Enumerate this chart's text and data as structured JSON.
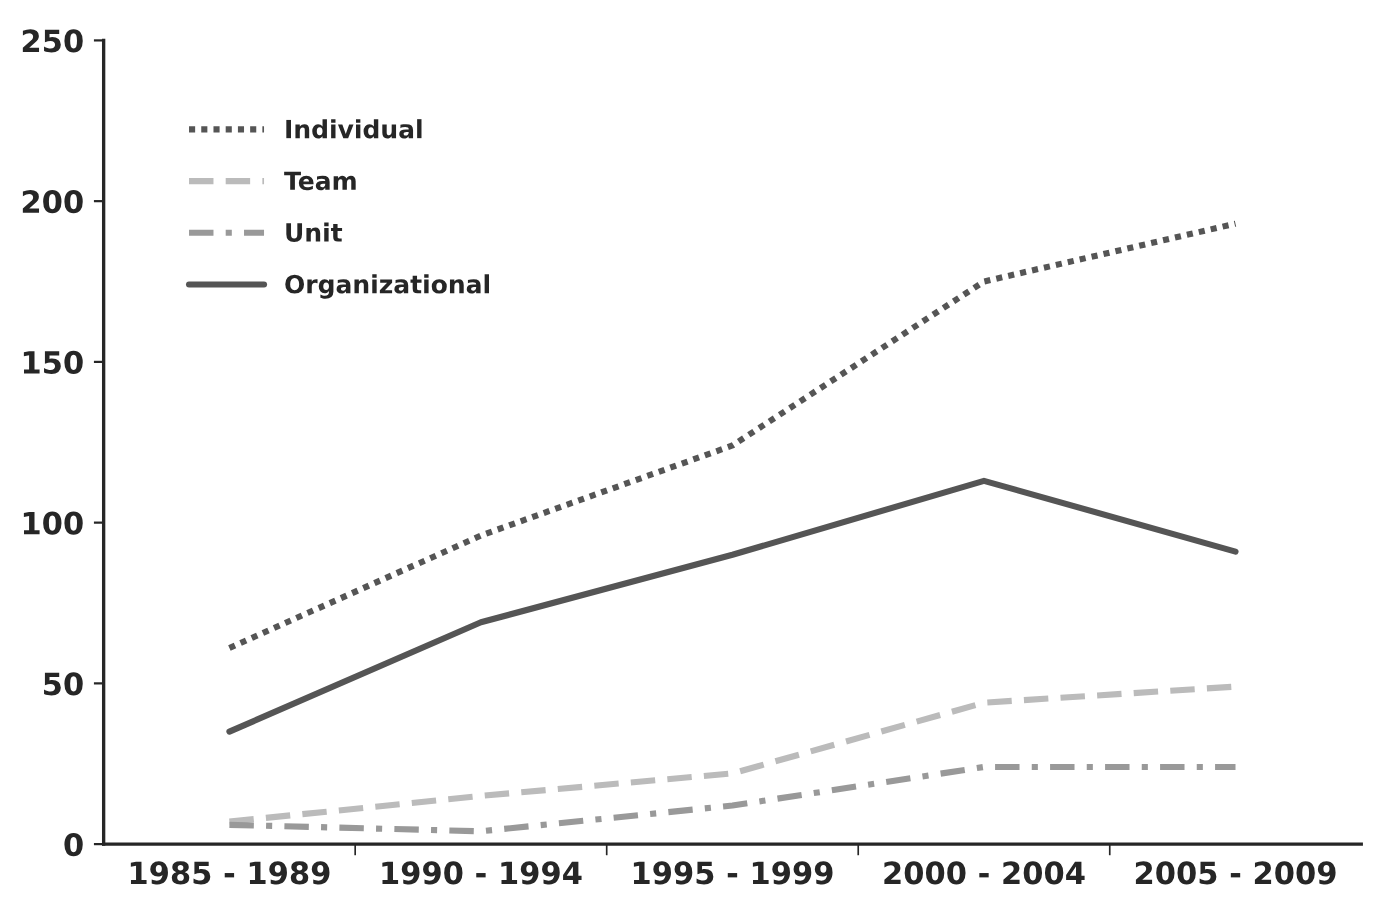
{
  "chart_data": {
    "type": "line",
    "categories": [
      "1985 - 1989",
      "1990 - 1994",
      "1995 - 1999",
      "2000 - 2004",
      "2005 - 2009"
    ],
    "series": [
      {
        "name": "Individual",
        "color": "#555555",
        "line_style": "dotted",
        "values": [
          61,
          96,
          124,
          175,
          193
        ]
      },
      {
        "name": "Team",
        "color": "#bbbbbb",
        "line_style": "dashed",
        "values": [
          7,
          15,
          22,
          44,
          49
        ]
      },
      {
        "name": "Unit",
        "color": "#999999",
        "line_style": "dashdot",
        "values": [
          6,
          4,
          12,
          24,
          24
        ]
      },
      {
        "name": "Organizational",
        "color": "#555555",
        "line_style": "solid",
        "values": [
          35,
          69,
          90,
          113,
          91
        ]
      }
    ],
    "ylim": [
      0,
      250
    ],
    "yticks": [
      0,
      50,
      100,
      150,
      200,
      250
    ],
    "grid": false,
    "legend": "top left"
  }
}
